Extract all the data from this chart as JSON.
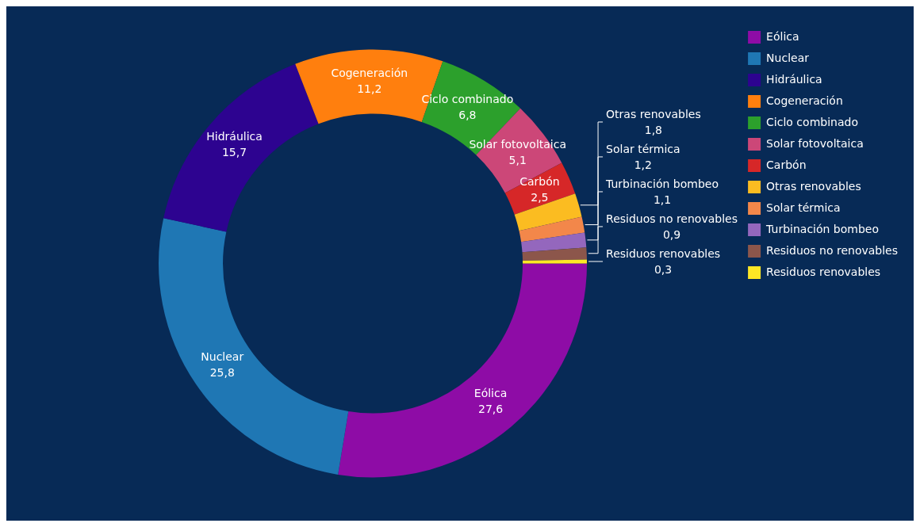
{
  "chart_data": {
    "type": "donut",
    "categories": [
      "Eólica",
      "Nuclear",
      "Hidráulica",
      "Cogeneración",
      "Ciclo combinado",
      "Solar fotovoltaica",
      "Carbón",
      "Otras renovables",
      "Solar térmica",
      "Turbinación bombeo",
      "Residuos no renovables",
      "Residuos renovables"
    ],
    "values": [
      27.6,
      25.8,
      15.7,
      11.2,
      6.8,
      5.1,
      2.5,
      1.8,
      1.2,
      1.1,
      0.9,
      0.3
    ],
    "value_labels": [
      "27,6",
      "25,8",
      "15,7",
      "11,2",
      "6,8",
      "5,1",
      "2,5",
      "1,8",
      "1,2",
      "1,1",
      "0,9",
      "0,3"
    ],
    "colors": [
      "#8e0ca6",
      "#1f77b4",
      "#2d0390",
      "#ff7f0e",
      "#2ca02c",
      "#cc4778",
      "#d62728",
      "#fbbc21",
      "#f3874a",
      "#9467bd",
      "#8c564b",
      "#fde725"
    ],
    "legend": "top right"
  }
}
